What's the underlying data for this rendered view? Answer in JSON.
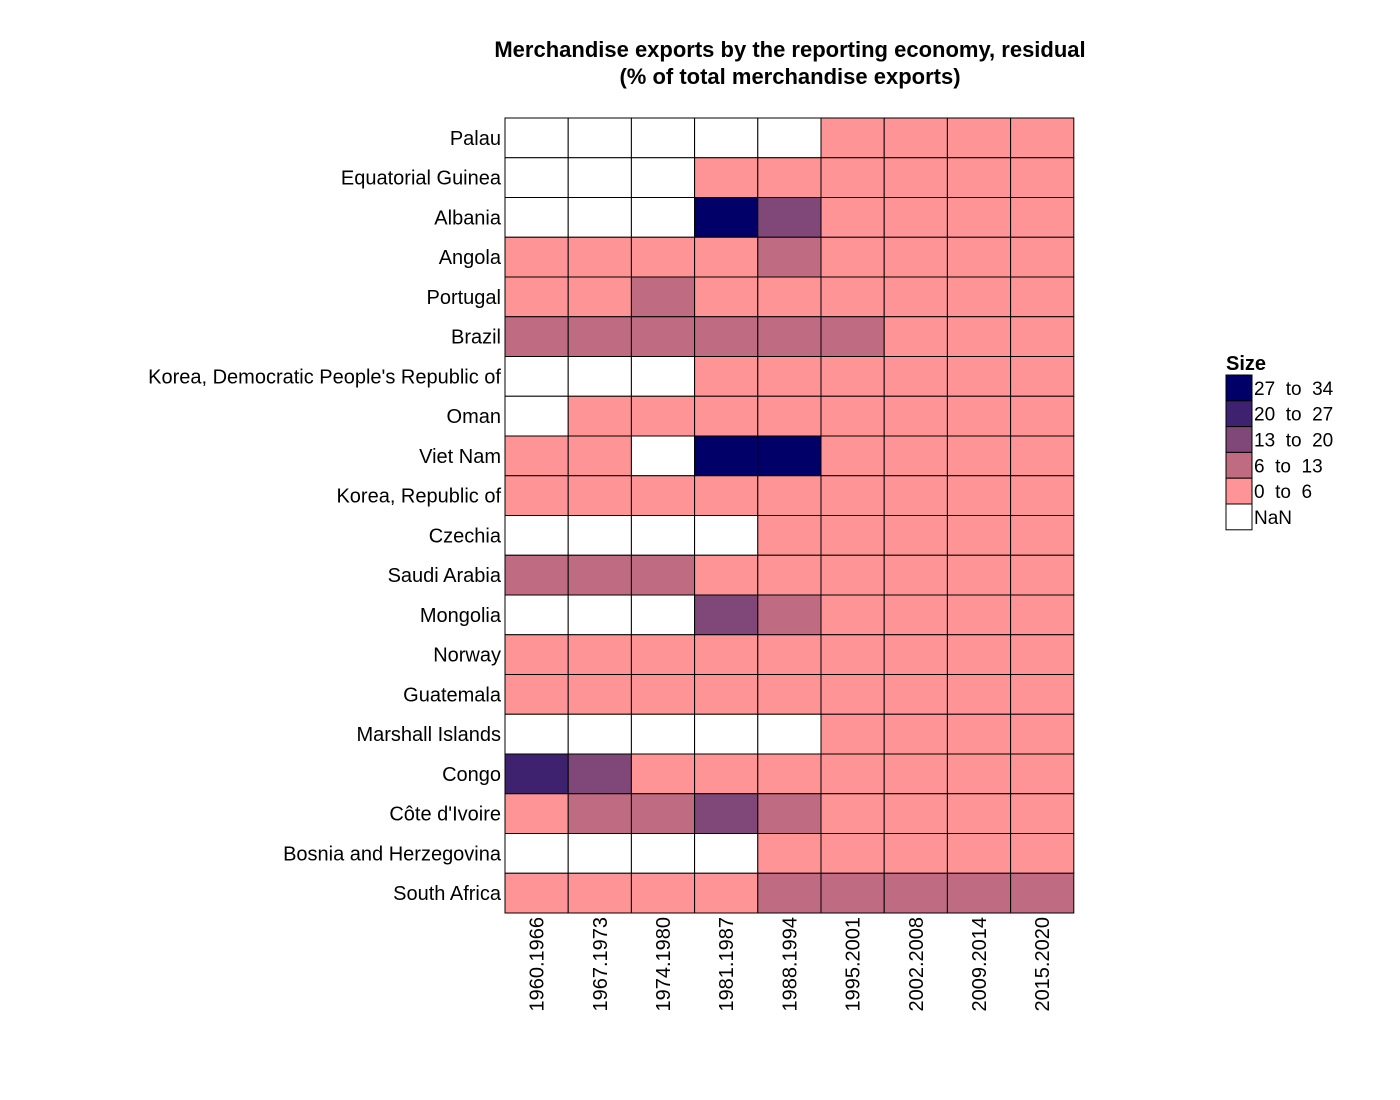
{
  "chart_data": {
    "type": "heatmap",
    "title": "Merchandise exports by the reporting economy, residual",
    "subtitle": "(% of total merchandise exports)",
    "x": [
      "1960.1966",
      "1967.1973",
      "1974.1980",
      "1981.1987",
      "1988.1994",
      "1995.2001",
      "2002.2008",
      "2009.2014",
      "2015.2020"
    ],
    "y": [
      "Palau",
      "Equatorial Guinea",
      "Albania",
      "Angola",
      "Portugal",
      "Brazil",
      "Korea, Democratic People's Republic of",
      "Oman",
      "Viet Nam",
      "Korea, Republic of",
      "Czechia",
      "Saudi Arabia",
      "Mongolia",
      "Norway",
      "Guatemala",
      "Marshall Islands",
      "Congo",
      "Côte d'Ivoire",
      "Bosnia and Herzegovina",
      "South Africa"
    ],
    "cells": [
      [
        null,
        null,
        null,
        null,
        null,
        0,
        0,
        0,
        0
      ],
      [
        null,
        null,
        null,
        0,
        0,
        0,
        0,
        0,
        0
      ],
      [
        null,
        null,
        null,
        4,
        2,
        0,
        0,
        0,
        0
      ],
      [
        0,
        0,
        0,
        0,
        1,
        0,
        0,
        0,
        0
      ],
      [
        0,
        0,
        1,
        0,
        0,
        0,
        0,
        0,
        0
      ],
      [
        1,
        1,
        1,
        1,
        1,
        1,
        0,
        0,
        0
      ],
      [
        null,
        null,
        null,
        0,
        0,
        0,
        0,
        0,
        0
      ],
      [
        null,
        0,
        0,
        0,
        0,
        0,
        0,
        0,
        0
      ],
      [
        0,
        0,
        null,
        4,
        4,
        0,
        0,
        0,
        0
      ],
      [
        0,
        0,
        0,
        0,
        0,
        0,
        0,
        0,
        0
      ],
      [
        null,
        null,
        null,
        null,
        0,
        0,
        0,
        0,
        0
      ],
      [
        1,
        1,
        1,
        0,
        0,
        0,
        0,
        0,
        0
      ],
      [
        null,
        null,
        null,
        2,
        1,
        0,
        0,
        0,
        0
      ],
      [
        0,
        0,
        0,
        0,
        0,
        0,
        0,
        0,
        0
      ],
      [
        0,
        0,
        0,
        0,
        0,
        0,
        0,
        0,
        0
      ],
      [
        null,
        null,
        null,
        null,
        null,
        0,
        0,
        0,
        0
      ],
      [
        3,
        2,
        0,
        0,
        0,
        0,
        0,
        0,
        0
      ],
      [
        0,
        1,
        1,
        2,
        1,
        0,
        0,
        0,
        0
      ],
      [
        null,
        null,
        null,
        null,
        0,
        0,
        0,
        0,
        0
      ],
      [
        0,
        0,
        0,
        0,
        1,
        1,
        1,
        1,
        1
      ]
    ],
    "cell_encoding": "index into legend.bins (0 = '0 to 6' ... 4 = '27 to 34'); null = NaN",
    "legend": {
      "title": "Size",
      "placement": "right",
      "bins": [
        {
          "label": "0  to  6",
          "color": "#FF9496"
        },
        {
          "label": "6  to  13",
          "color": "#BF6B82"
        },
        {
          "label": "13  to  20",
          "color": "#804878"
        },
        {
          "label": "20  to  27",
          "color": "#3E2270"
        },
        {
          "label": "27  to  34",
          "color": "#000068"
        }
      ],
      "nan": {
        "label": "NaN",
        "color": "#FFFFFF"
      }
    }
  }
}
